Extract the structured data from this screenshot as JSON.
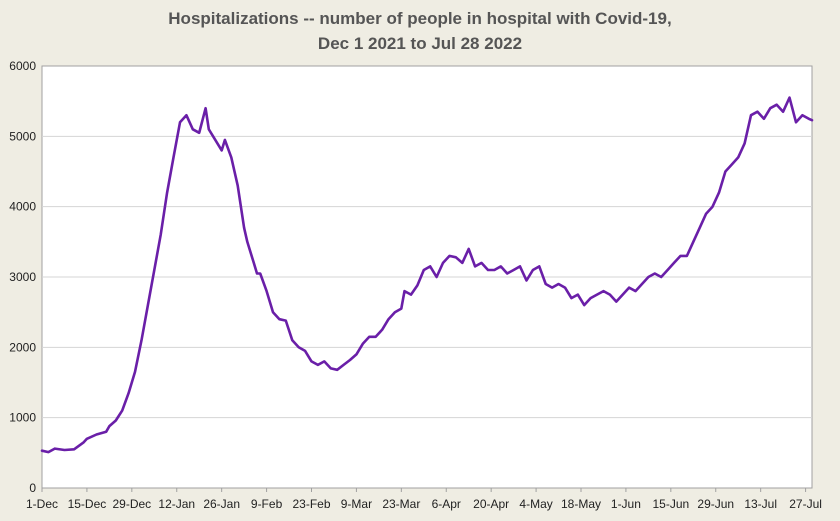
{
  "chart_data": {
    "type": "line",
    "title_line1": "Hospitalizations -- number of people in hospital with Covid-19,",
    "title_line2": "Dec 1 2021 to Jul 28  2022",
    "xlabel": "",
    "ylabel": "",
    "ylim": [
      0,
      6000
    ],
    "yticks": [
      0,
      1000,
      2000,
      3000,
      4000,
      5000,
      6000
    ],
    "xticks": [
      "1-Dec",
      "15-Dec",
      "29-Dec",
      "12-Jan",
      "26-Jan",
      "9-Feb",
      "23-Feb",
      "9-Mar",
      "23-Mar",
      "6-Apr",
      "20-Apr",
      "4-May",
      "18-May",
      "1-Jun",
      "15-Jun",
      "29-Jun",
      "13-Jul",
      "27-Jul"
    ],
    "grid": "horizontal",
    "line_color": "#6a1fa8",
    "series": [
      {
        "day_offsets": [
          0,
          2,
          4,
          7,
          10,
          13,
          14,
          17,
          20,
          21,
          23,
          25,
          27,
          29,
          31,
          33,
          35,
          37,
          39,
          41,
          43,
          45,
          47,
          49,
          51,
          52,
          54,
          56,
          57,
          59,
          61,
          63,
          64,
          66,
          67,
          68,
          70,
          72,
          74,
          76,
          78,
          80,
          82,
          84,
          86,
          88,
          90,
          92,
          94,
          96,
          98,
          100,
          102,
          104,
          106,
          108,
          110,
          112,
          113,
          115,
          117,
          119,
          121,
          123,
          125,
          127,
          129,
          131,
          133,
          135,
          137,
          139,
          141,
          143,
          145,
          147,
          149,
          151,
          153,
          155,
          157,
          159,
          161,
          163,
          165,
          167,
          169,
          171,
          173,
          175,
          177,
          179,
          181,
          183,
          185,
          187,
          189,
          191,
          193,
          195,
          197,
          199,
          201,
          203,
          205,
          207,
          209,
          211,
          213,
          215,
          217,
          219,
          221,
          223,
          225,
          227,
          229,
          231,
          233,
          235,
          237,
          239,
          240
        ],
        "values": [
          530,
          510,
          560,
          540,
          550,
          650,
          700,
          760,
          800,
          880,
          960,
          1100,
          1350,
          1650,
          2100,
          2600,
          3100,
          3600,
          4200,
          4700,
          5200,
          5300,
          5100,
          5050,
          5400,
          5100,
          4950,
          4800,
          4950,
          4700,
          4300,
          3700,
          3500,
          3200,
          3050,
          3050,
          2800,
          2500,
          2400,
          2380,
          2100,
          2000,
          1950,
          1800,
          1750,
          1800,
          1700,
          1680,
          1750,
          1820,
          1900,
          2050,
          2150,
          2150,
          2250,
          2400,
          2500,
          2550,
          2800,
          2750,
          2880,
          3100,
          3150,
          3000,
          3200,
          3300,
          3280,
          3200,
          3400,
          3150,
          3200,
          3100,
          3100,
          3150,
          3050,
          3100,
          3150,
          2950,
          3100,
          3150,
          2900,
          2850,
          2900,
          2850,
          2700,
          2750,
          2600,
          2700,
          2750,
          2800,
          2750,
          2650,
          2750,
          2850,
          2800,
          2900,
          3000,
          3050,
          3000,
          3100,
          3200,
          3300,
          3300,
          3500,
          3700,
          3900,
          4000,
          4200,
          4500,
          4600,
          4700,
          4900,
          5300,
          5350,
          5250,
          5400,
          5450,
          5350,
          5550,
          5200,
          5300,
          5250,
          5230
        ]
      }
    ]
  }
}
